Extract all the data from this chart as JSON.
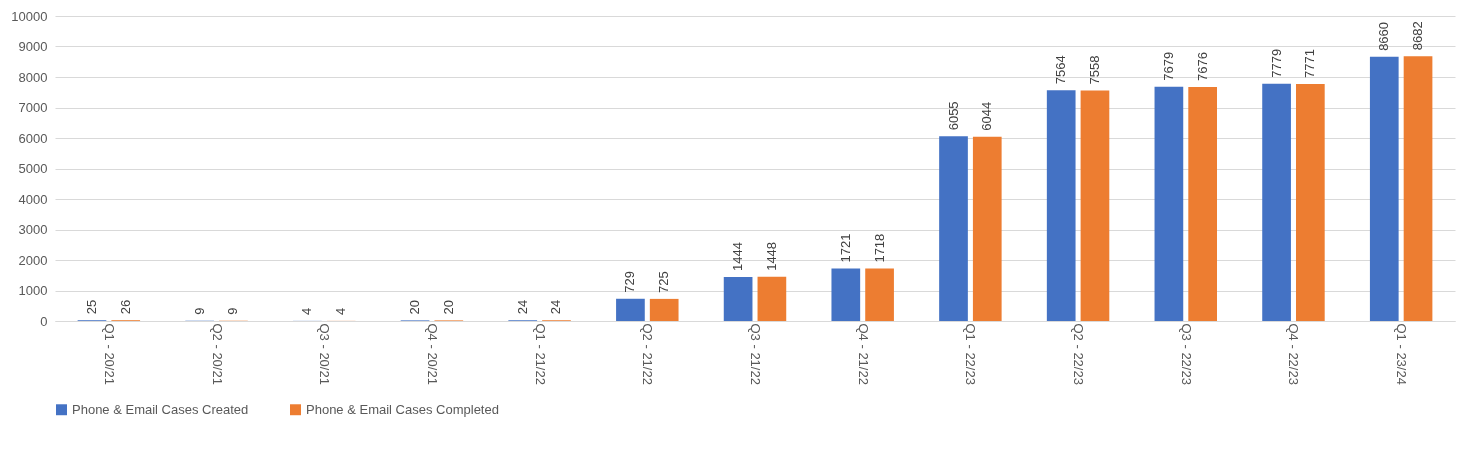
{
  "chart_data": {
    "type": "bar",
    "categories": [
      "Q1 - 20/21",
      "Q2 - 20/21",
      "Q3 - 20/21",
      "Q4 - 20/21",
      "Q1 - 21/22",
      "Q2 - 21/22",
      "Q3 - 21/22",
      "Q4 - 21/22",
      "Q1 - 22/23",
      "Q2 - 22/23",
      "Q3 - 22/23",
      "Q4 - 22/23",
      "Q1 - 23/24"
    ],
    "series": [
      {
        "name": "Phone & Email Cases Created",
        "color": "#4472c4",
        "values": [
          25,
          9,
          4,
          20,
          24,
          729,
          1444,
          1721,
          6055,
          7564,
          7679,
          7779,
          8660
        ]
      },
      {
        "name": "Phone & Email Cases Completed",
        "color": "#ed7d31",
        "values": [
          26,
          9,
          4,
          20,
          24,
          725,
          1448,
          1718,
          6044,
          7558,
          7676,
          7771,
          8682
        ]
      }
    ],
    "ylim": [
      0,
      10000
    ],
    "yticks": [
      0,
      1000,
      2000,
      3000,
      4000,
      5000,
      6000,
      7000,
      8000,
      9000,
      10000
    ],
    "grid": "y",
    "legend": "bottom",
    "data_labels": true
  }
}
